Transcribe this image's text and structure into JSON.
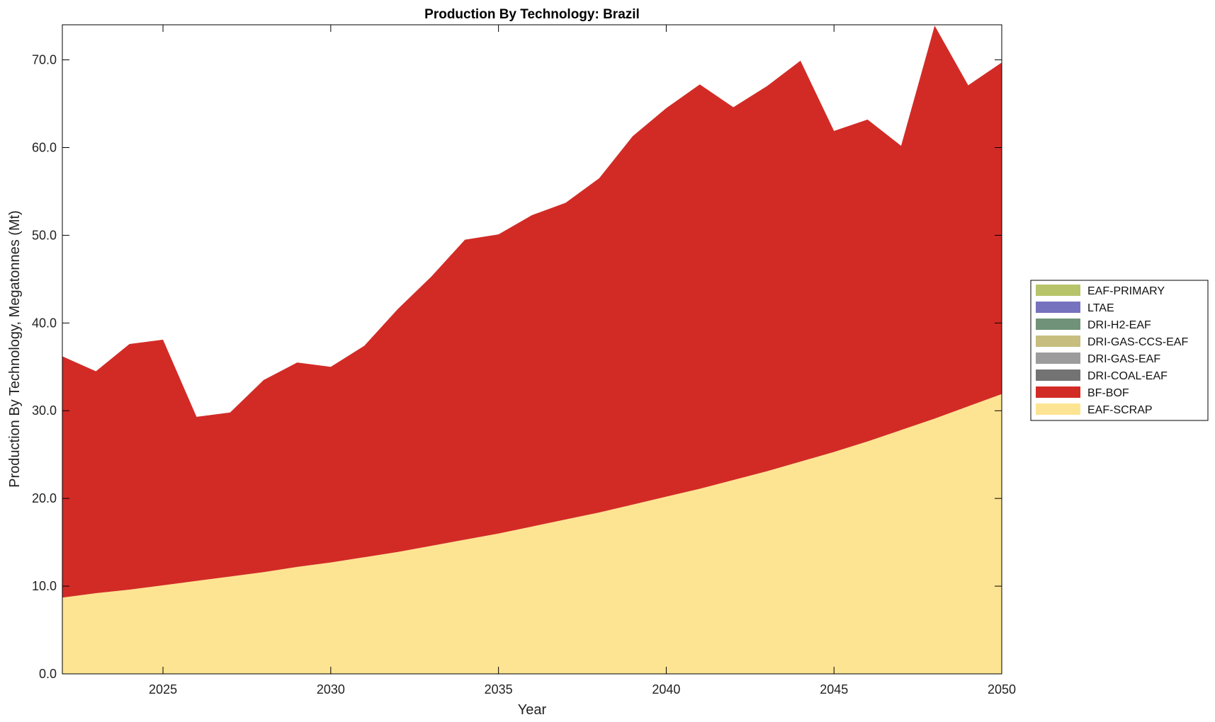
{
  "chart_data": {
    "type": "area",
    "stacked": true,
    "title": "Production By Technology: Brazil",
    "xlabel": "Year",
    "ylabel": "Production By Technology, Megatonnes (Mt)",
    "xlim": [
      2022,
      2050
    ],
    "ylim": [
      0,
      74
    ],
    "x_ticks": [
      2025,
      2030,
      2035,
      2040,
      2045,
      2050
    ],
    "x_tick_labels": [
      "2025",
      "2030",
      "2035",
      "2040",
      "2045",
      "2050"
    ],
    "y_ticks": [
      0,
      10,
      20,
      30,
      40,
      50,
      60,
      70
    ],
    "y_tick_labels": [
      "0.0",
      "10.0",
      "20.0",
      "30.0",
      "40.0",
      "50.0",
      "60.0",
      "70.0"
    ],
    "grid": false,
    "legend_position": "right",
    "x": [
      2022,
      2023,
      2024,
      2025,
      2026,
      2027,
      2028,
      2029,
      2030,
      2031,
      2032,
      2033,
      2034,
      2035,
      2036,
      2037,
      2038,
      2039,
      2040,
      2041,
      2042,
      2043,
      2044,
      2045,
      2046,
      2047,
      2048,
      2049,
      2050
    ],
    "series": [
      {
        "name": "EAF-SCRAP",
        "color": "#fde492",
        "values": [
          8.7,
          9.2,
          9.6,
          10.1,
          10.6,
          11.1,
          11.6,
          12.2,
          12.7,
          13.3,
          13.9,
          14.6,
          15.3,
          16.0,
          16.8,
          17.6,
          18.4,
          19.3,
          20.2,
          21.1,
          22.1,
          23.1,
          24.2,
          25.3,
          26.5,
          27.8,
          29.1,
          30.5,
          31.9
        ]
      },
      {
        "name": "BF-BOF",
        "color": "#d22b26",
        "values": [
          27.5,
          25.3,
          28.0,
          28.0,
          18.7,
          18.7,
          21.9,
          23.3,
          22.3,
          24.1,
          27.7,
          30.7,
          34.2,
          34.1,
          35.5,
          36.1,
          38.1,
          42.0,
          44.3,
          46.1,
          42.5,
          43.9,
          45.7,
          36.6,
          36.7,
          32.4,
          44.8,
          36.6,
          37.8
        ]
      },
      {
        "name": "DRI-COAL-EAF",
        "color": "#737373",
        "values": [
          0,
          0,
          0,
          0,
          0,
          0,
          0,
          0,
          0,
          0,
          0,
          0,
          0,
          0,
          0,
          0,
          0,
          0,
          0,
          0,
          0,
          0,
          0,
          0,
          0,
          0,
          0,
          0,
          0
        ]
      },
      {
        "name": "DRI-GAS-EAF",
        "color": "#9c9c9c",
        "values": [
          0,
          0,
          0,
          0,
          0,
          0,
          0,
          0,
          0,
          0,
          0,
          0,
          0,
          0,
          0,
          0,
          0,
          0,
          0,
          0,
          0,
          0,
          0,
          0,
          0,
          0,
          0,
          0,
          0
        ]
      },
      {
        "name": "DRI-GAS-CCS-EAF",
        "color": "#c6bd7e",
        "values": [
          0,
          0,
          0,
          0,
          0,
          0,
          0,
          0,
          0,
          0,
          0,
          0,
          0,
          0,
          0,
          0,
          0,
          0,
          0,
          0,
          0,
          0,
          0,
          0,
          0,
          0,
          0,
          0,
          0
        ]
      },
      {
        "name": "DRI-H2-EAF",
        "color": "#6f9278",
        "values": [
          0,
          0,
          0,
          0,
          0,
          0,
          0,
          0,
          0,
          0,
          0,
          0,
          0,
          0,
          0,
          0,
          0,
          0,
          0,
          0,
          0,
          0,
          0,
          0,
          0,
          0,
          0,
          0,
          0
        ]
      },
      {
        "name": "LTAE",
        "color": "#7672bd",
        "values": [
          0,
          0,
          0,
          0,
          0,
          0,
          0,
          0,
          0,
          0,
          0,
          0,
          0,
          0,
          0,
          0,
          0,
          0,
          0,
          0,
          0,
          0,
          0,
          0,
          0,
          0,
          0,
          0,
          0
        ]
      },
      {
        "name": "EAF-PRIMARY",
        "color": "#b8c46a",
        "values": [
          0,
          0,
          0,
          0,
          0,
          0,
          0,
          0,
          0,
          0,
          0,
          0,
          0,
          0,
          0,
          0,
          0,
          0,
          0,
          0,
          0,
          0,
          0,
          0,
          0,
          0,
          0,
          0,
          0
        ]
      }
    ],
    "legend_order": [
      "EAF-PRIMARY",
      "LTAE",
      "DRI-H2-EAF",
      "DRI-GAS-CCS-EAF",
      "DRI-GAS-EAF",
      "DRI-COAL-EAF",
      "BF-BOF",
      "EAF-SCRAP"
    ]
  }
}
